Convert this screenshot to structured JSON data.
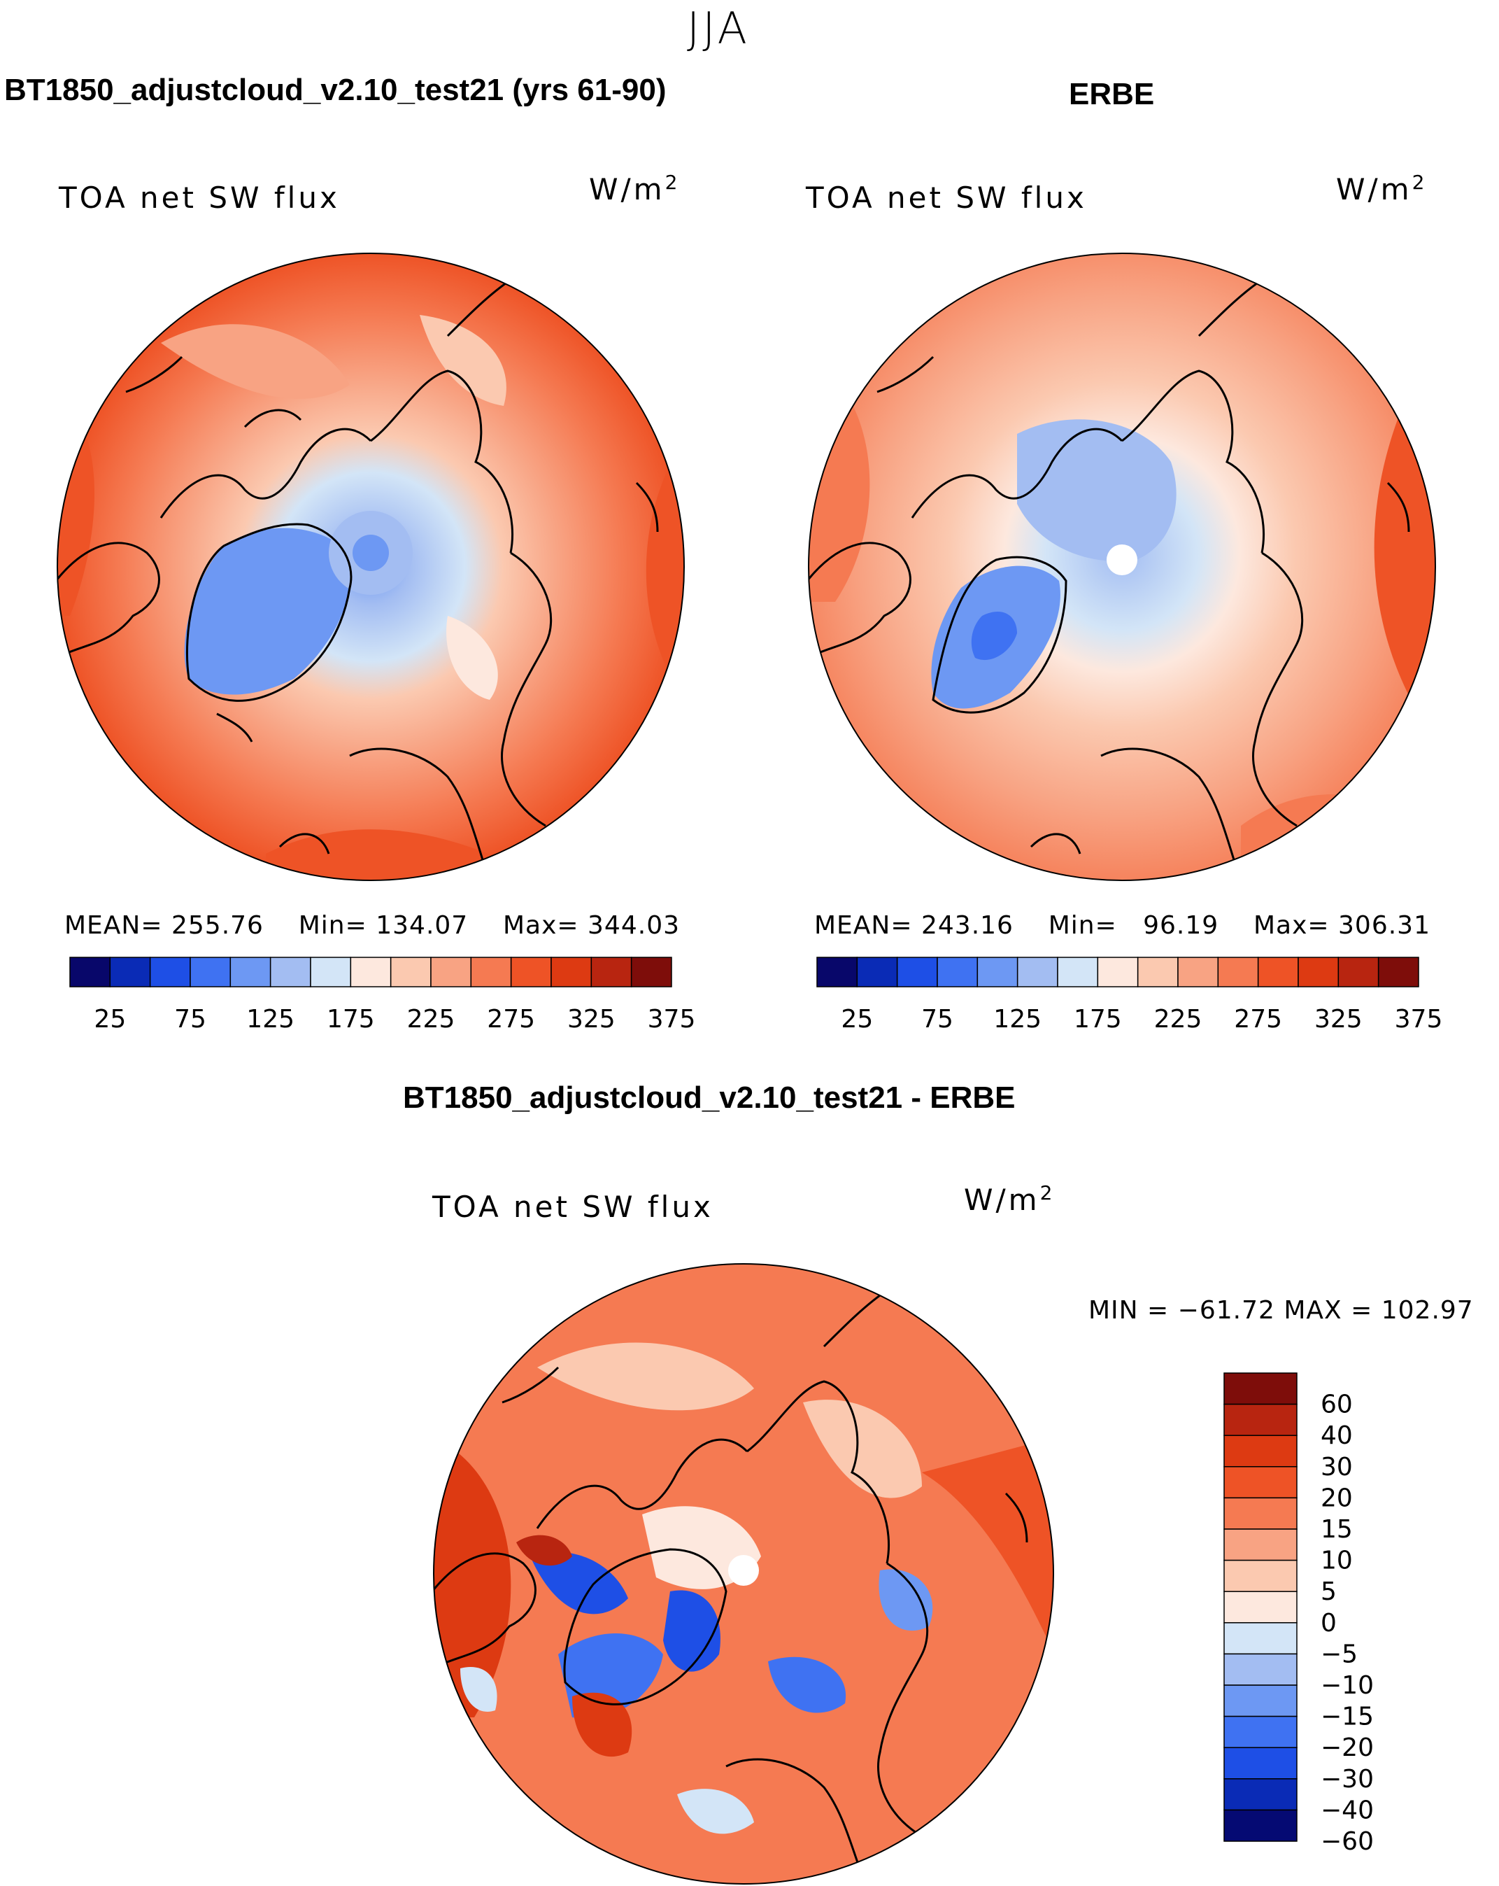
{
  "figure": {
    "season": "JJA",
    "variable": "TOA net SW flux",
    "units_base": "W/m",
    "units_exp": "2"
  },
  "colors": {
    "coast": "#000000",
    "flux_scale": [
      "#08076a",
      "#0a2bb6",
      "#1e4fe6",
      "#3f72f2",
      "#6d98f3",
      "#a3bdf2",
      "#d3e5f7",
      "#fde8de",
      "#fbc9b0",
      "#f8a383",
      "#f57a52",
      "#ee5326",
      "#dd3a12",
      "#b82510",
      "#7e0d0a"
    ],
    "diff_scale": [
      "#050a73",
      "#0a2bb6",
      "#1e4fe6",
      "#3f72f2",
      "#6d98f3",
      "#a3bdf2",
      "#d3e5f7",
      "#fde8de",
      "#fbc9b0",
      "#f8a383",
      "#f57a52",
      "#ee5326",
      "#dd3a12",
      "#b82510",
      "#7e0d0a"
    ]
  },
  "panels": [
    {
      "title": "BT1850_adjustcloud_v2.10_test21 (yrs 61-90)",
      "subtitle": "TOA net SW flux",
      "mean_label": "MEAN=",
      "mean": "255.76",
      "min_label": "Min=",
      "min": "134.07",
      "max_label": "Max=",
      "max": "344.03",
      "colorbar_ticks": [
        "25",
        "75",
        "125",
        "175",
        "225",
        "275",
        "325",
        "375"
      ]
    },
    {
      "title": "ERBE",
      "subtitle": "TOA net SW flux",
      "mean_label": "MEAN=",
      "mean": "243.16",
      "min_label": "Min=",
      "min": "96.19",
      "max_label": "Max=",
      "max": "306.31",
      "colorbar_ticks": [
        "25",
        "75",
        "125",
        "175",
        "225",
        "275",
        "325",
        "375"
      ]
    }
  ],
  "difference": {
    "title": "BT1850_adjustcloud_v2.10_test21 - ERBE",
    "subtitle": "TOA net SW flux",
    "range_text": "MIN = −61.72 MAX = 102.97",
    "colorbar_ticks": [
      "60",
      "40",
      "30",
      "20",
      "15",
      "10",
      "5",
      "0",
      "−5",
      "−10",
      "−15",
      "−20",
      "−30",
      "−40",
      "−60"
    ]
  },
  "chart_data": [
    {
      "type": "heatmap",
      "title": "BT1850_adjustcloud_v2.10_test21 (yrs 61-90)",
      "projection": "north polar stereographic",
      "variable": "TOA net SW flux",
      "units": "W/m2",
      "mean": 255.76,
      "min": 134.07,
      "max": 344.03,
      "levels": [
        25,
        50,
        75,
        100,
        125,
        150,
        175,
        200,
        225,
        250,
        275,
        300,
        325,
        350,
        375
      ]
    },
    {
      "type": "heatmap",
      "title": "ERBE",
      "projection": "north polar stereographic",
      "variable": "TOA net SW flux",
      "units": "W/m2",
      "mean": 243.16,
      "min": 96.19,
      "max": 306.31,
      "levels": [
        25,
        50,
        75,
        100,
        125,
        150,
        175,
        200,
        225,
        250,
        275,
        300,
        325,
        350,
        375
      ]
    },
    {
      "type": "heatmap",
      "title": "BT1850_adjustcloud_v2.10_test21 - ERBE",
      "projection": "north polar stereographic",
      "variable": "TOA net SW flux",
      "units": "W/m2",
      "min": -61.72,
      "max": 102.97,
      "levels": [
        -60,
        -40,
        -30,
        -20,
        -15,
        -10,
        -5,
        0,
        5,
        10,
        15,
        20,
        30,
        40,
        60
      ]
    }
  ]
}
